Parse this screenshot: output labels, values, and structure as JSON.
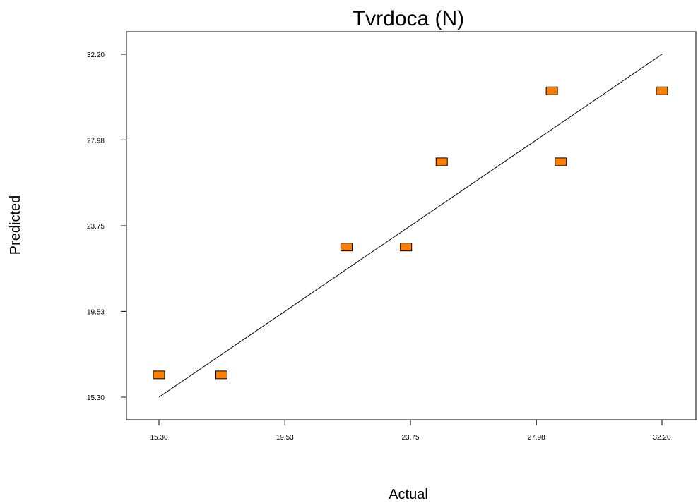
{
  "chart_data": {
    "type": "scatter",
    "title": "Tvrdoca (N)",
    "xlabel": "Actual",
    "ylabel": "Predicted",
    "xlim": [
      15.3,
      32.2
    ],
    "ylim": [
      15.3,
      32.2
    ],
    "x_ticks": [
      "15.30",
      "19.53",
      "23.75",
      "27.98",
      "32.20"
    ],
    "y_ticks": [
      "15.30",
      "19.53",
      "23.75",
      "27.98",
      "32.20"
    ],
    "points": [
      {
        "x": 15.3,
        "y": 16.4
      },
      {
        "x": 17.4,
        "y": 16.4
      },
      {
        "x": 21.6,
        "y": 22.7
      },
      {
        "x": 23.6,
        "y": 22.7
      },
      {
        "x": 24.8,
        "y": 26.9
      },
      {
        "x": 28.5,
        "y": 30.4
      },
      {
        "x": 28.8,
        "y": 26.9
      },
      {
        "x": 32.2,
        "y": 30.4
      }
    ],
    "reference_line": {
      "from": [
        15.3,
        15.3
      ],
      "to": [
        32.2,
        32.2
      ]
    },
    "marker_color": "#ff7f00",
    "marker_shape": "rectangle",
    "grid": false,
    "legend": "none"
  }
}
